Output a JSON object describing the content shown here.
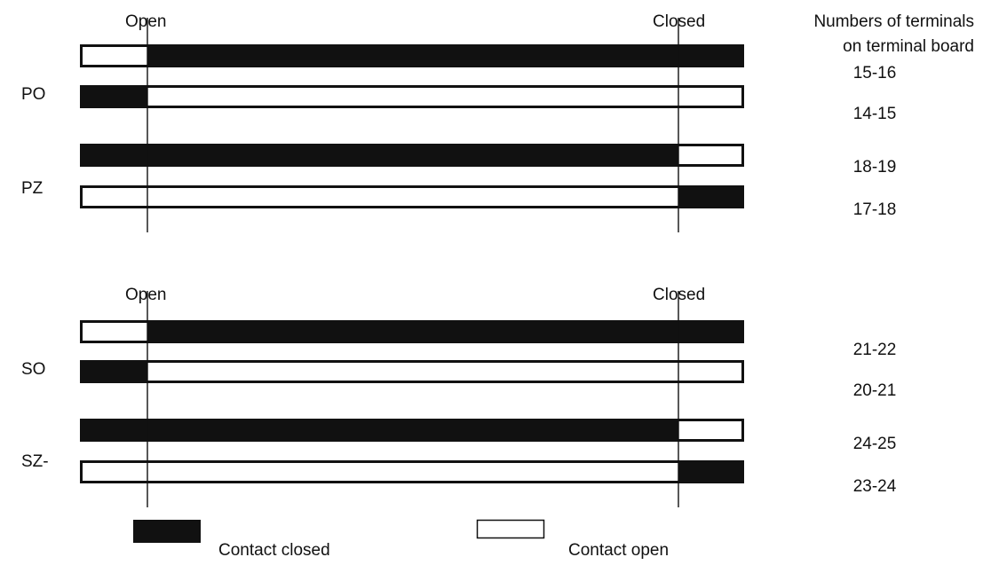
{
  "header": {
    "terminals_title_line1": "Numbers of terminals",
    "terminals_title_line2": "on terminal board"
  },
  "groups": [
    {
      "open_label": "Open",
      "closed_label": "Closed",
      "switches": [
        {
          "name": "PO",
          "upper_terminals": "15-16",
          "lower_terminals": "14-15",
          "upper_pattern": [
            "open",
            "closed",
            "closed"
          ],
          "lower_pattern": [
            "closed",
            "open",
            "open"
          ]
        },
        {
          "name": "PZ",
          "upper_terminals": "18-19",
          "lower_terminals": "17-18",
          "upper_pattern": [
            "closed",
            "closed",
            "open"
          ],
          "lower_pattern": [
            "open",
            "open",
            "closed"
          ]
        }
      ]
    },
    {
      "open_label": "Open",
      "closed_label": "Closed",
      "switches": [
        {
          "name": "SO",
          "upper_terminals": "21-22",
          "lower_terminals": "20-21",
          "upper_pattern": [
            "open",
            "closed",
            "closed"
          ],
          "lower_pattern": [
            "closed",
            "open",
            "open"
          ]
        },
        {
          "name": "SZ-",
          "upper_terminals": "24-25",
          "lower_terminals": "23-24",
          "upper_pattern": [
            "closed",
            "closed",
            "open"
          ],
          "lower_pattern": [
            "open",
            "open",
            "closed"
          ]
        }
      ]
    }
  ],
  "legend": {
    "closed_label": "Contact closed",
    "open_label": "Contact open"
  },
  "colors": {
    "contact_closed": "#111111",
    "contact_open": "#ffffff",
    "stroke": "#111111"
  }
}
